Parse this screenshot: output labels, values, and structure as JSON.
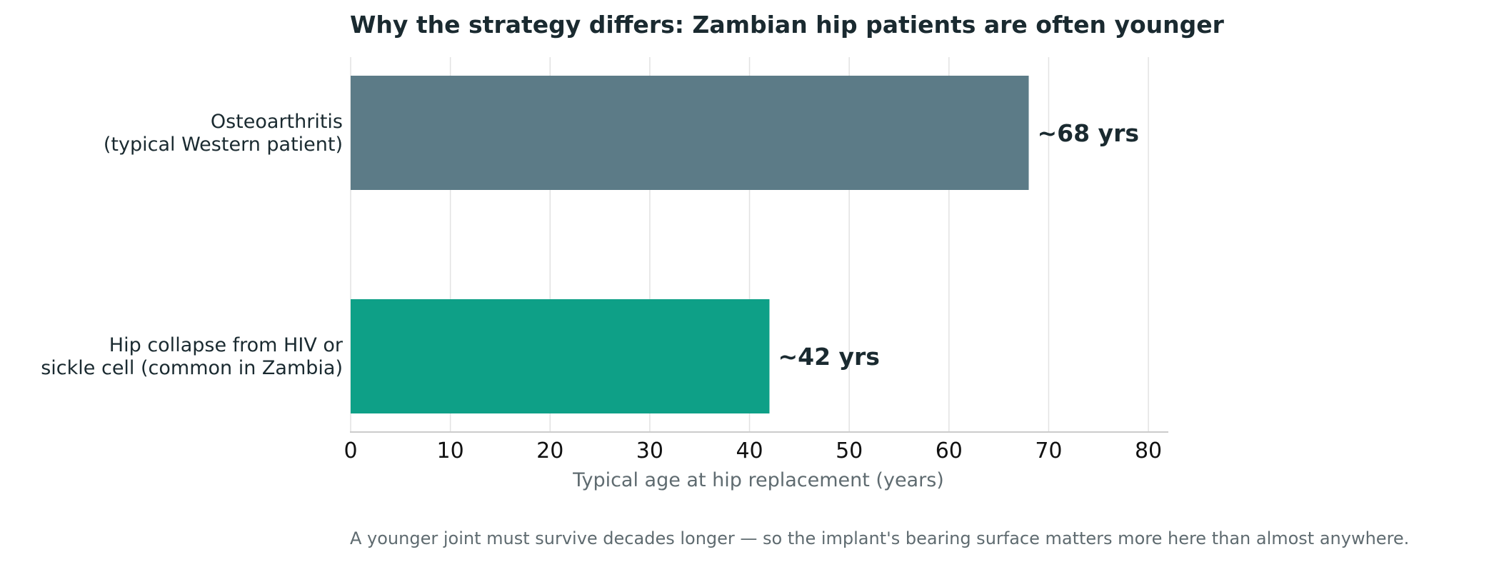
{
  "chart_data": {
    "type": "bar",
    "orientation": "horizontal",
    "title": "Why the strategy differs: Zambian hip patients are often younger",
    "xlabel": "Typical age at hip replacement (years)",
    "ylabel": "",
    "xlim": [
      0,
      82
    ],
    "xticks": [
      0,
      10,
      20,
      30,
      40,
      50,
      60,
      70,
      80
    ],
    "grid": "vertical",
    "categories": [
      [
        "Osteoarthritis",
        "(typical Western patient)"
      ],
      [
        "Hip collapse from HIV or",
        "sickle cell (common in Zambia)"
      ]
    ],
    "values": [
      68,
      42
    ],
    "value_labels": [
      "~68 yrs",
      "~42 yrs"
    ],
    "colors": [
      "#5c7b87",
      "#0ea087"
    ],
    "footnote": "A younger joint must survive decades longer — so the implant's bearing surface matters more here than almost anywhere."
  }
}
